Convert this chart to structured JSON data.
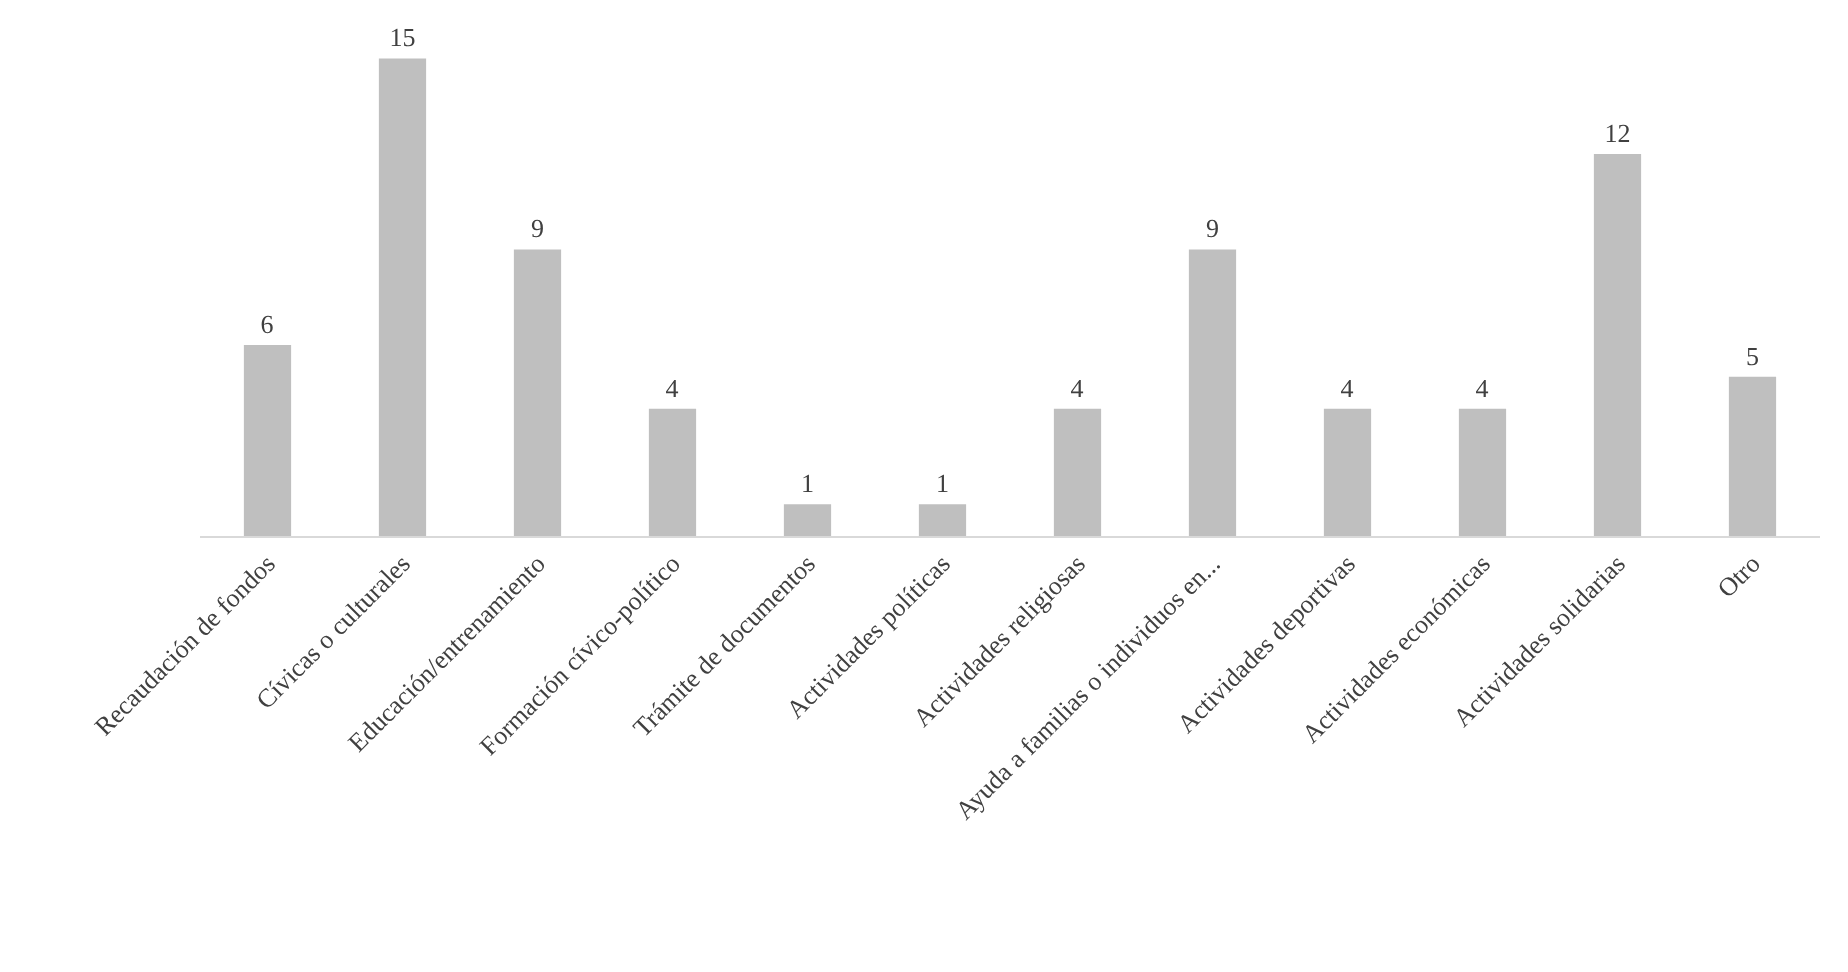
{
  "chart_data": {
    "type": "bar",
    "categories": [
      "Recaudación de fondos",
      "Cívicas o culturales",
      "Educación/entrenamiento",
      "Formación cívico-político",
      "Trámite de documentos",
      "Actividades políticas",
      "Actividades religiosas",
      "Ayuda a familias o individuos en...",
      "Actividades deportivas",
      "Actividades económicas",
      "Actividades solidarias",
      "Otro"
    ],
    "values": [
      6,
      15,
      9,
      4,
      1,
      1,
      4,
      9,
      4,
      4,
      12,
      5
    ],
    "color": "#bfbfbf",
    "data_labels": true,
    "tick_labels": "x"
  }
}
